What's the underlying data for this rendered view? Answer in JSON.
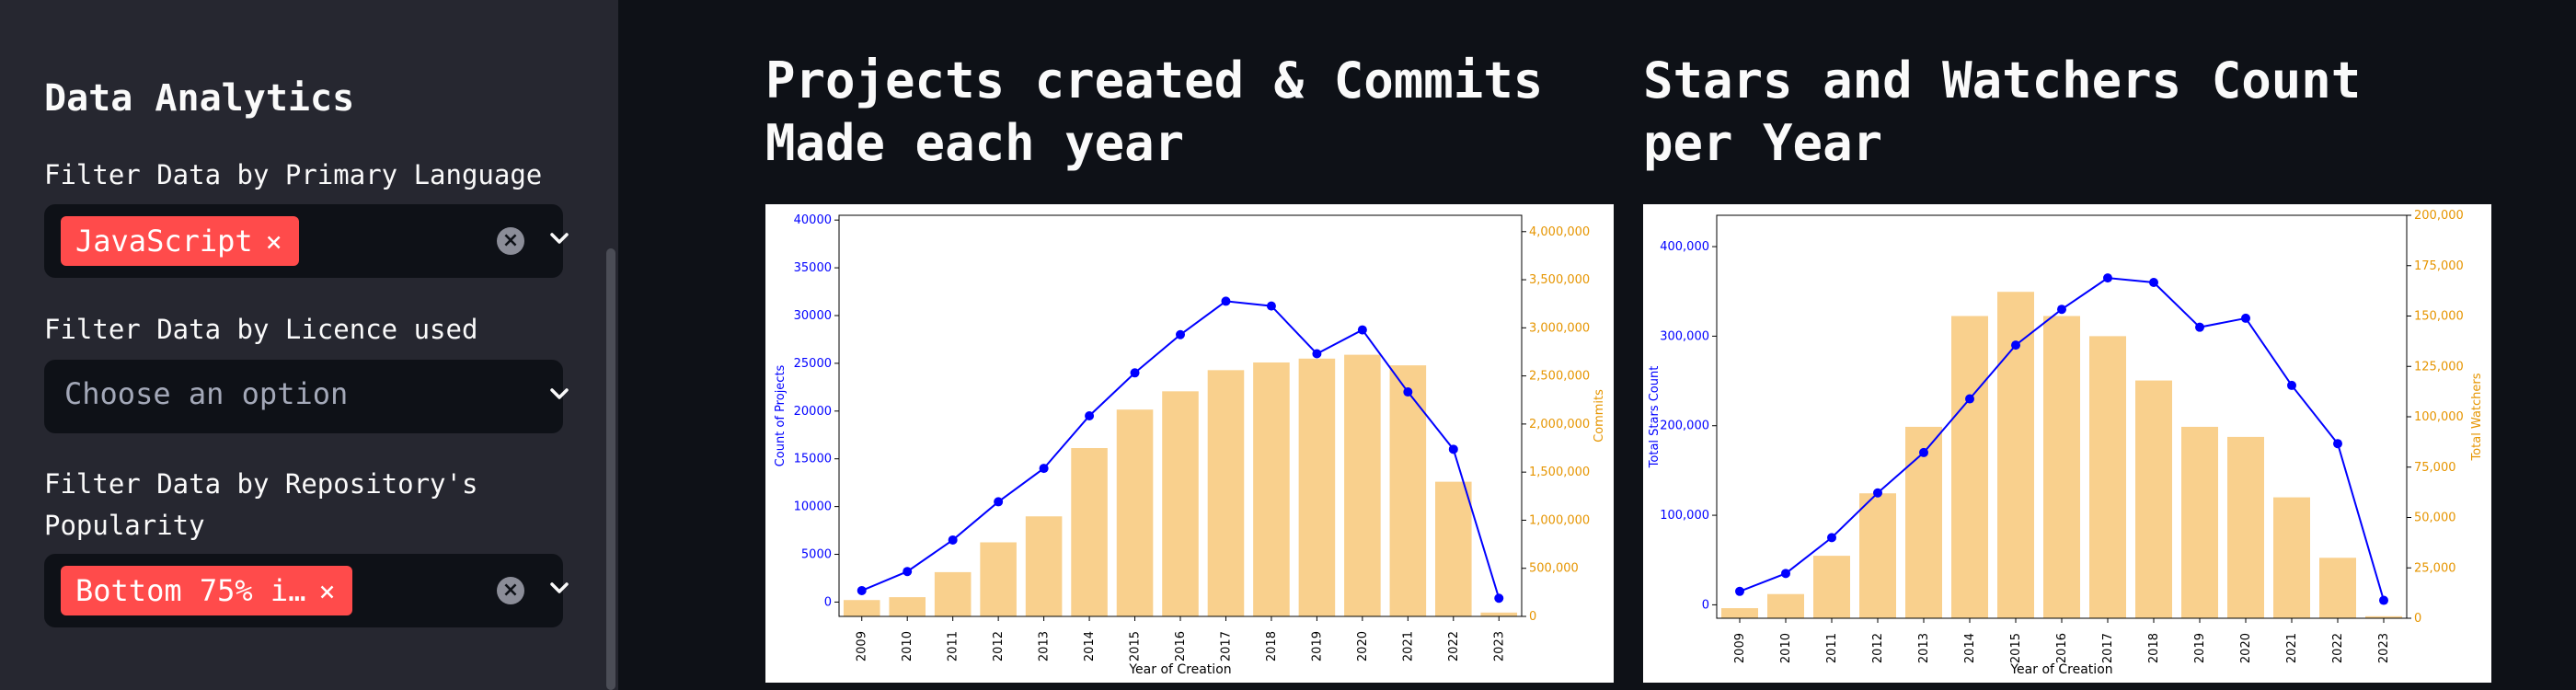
{
  "sidebar": {
    "title": "Data Analytics",
    "filters": [
      {
        "label": "Filter Data by Primary Language",
        "selected": "JavaScript"
      },
      {
        "label": "Filter Data by Licence used",
        "placeholder": "Choose an option"
      },
      {
        "label_line1": "Filter Data by Repository's",
        "label_line2": "Popularity",
        "selected": "Bottom 75% i…"
      }
    ],
    "tag_remove_glyph": "×",
    "clear_glyph": "×"
  },
  "charts": {
    "left_title_line1": "Projects created & Commits",
    "left_title_line2": "Made each year",
    "right_title_line1": "Stars and Watchers Count",
    "right_title_line2": "per Year"
  },
  "chart_data": [
    {
      "type": "bar",
      "title": "Projects created & Commits Made each year",
      "categories": [
        "2009",
        "2010",
        "2011",
        "2012",
        "2013",
        "2014",
        "2015",
        "2016",
        "2017",
        "2018",
        "2019",
        "2020",
        "2021",
        "2022",
        "2023"
      ],
      "xlabel": "Year of Creation",
      "ylabel": "Count of Projects",
      "y2label": "Commits",
      "ylim": [
        -1500,
        40500
      ],
      "y2lim": [
        0,
        4170000
      ],
      "yticks": [
        "0",
        "5000",
        "10000",
        "15000",
        "20000",
        "25000",
        "30000",
        "35000",
        "40000"
      ],
      "y2ticks": [
        "0",
        "500,000",
        "1,000,000",
        "1,500,000",
        "2,000,000",
        "2,500,000",
        "3,000,000",
        "3,500,000",
        "4,000,000"
      ],
      "series": [
        {
          "name": "Count of Projects",
          "kind": "line",
          "axis": "left",
          "color": "#0000ff",
          "values": [
            1200,
            3200,
            6500,
            10500,
            14000,
            19500,
            24000,
            28000,
            31500,
            31000,
            26000,
            28500,
            22000,
            16000,
            400
          ]
        },
        {
          "name": "Commits",
          "kind": "bar",
          "axis": "right",
          "color": "#f5b041",
          "values": [
            170000,
            200000,
            460000,
            770000,
            1040000,
            1750000,
            2150000,
            2340000,
            2560000,
            2640000,
            2680000,
            2720000,
            2610000,
            1400000,
            40000
          ]
        }
      ]
    },
    {
      "type": "bar",
      "title": "Stars and Watchers Count per Year",
      "categories": [
        "2009",
        "2010",
        "2011",
        "2012",
        "2013",
        "2014",
        "2015",
        "2016",
        "2017",
        "2018",
        "2019",
        "2020",
        "2021",
        "2022",
        "2023"
      ],
      "xlabel": "Year of Creation",
      "ylabel": "Total Stars Count",
      "y2label": "Total Watchers",
      "ylim": [
        -15000,
        435000
      ],
      "y2lim": [
        0,
        200000
      ],
      "yticks": [
        "0",
        "100,000",
        "200,000",
        "300,000",
        "400,000"
      ],
      "y2ticks": [
        "0",
        "25,000",
        "50,000",
        "75,000",
        "100,000",
        "125,000",
        "150,000",
        "175,000",
        "200,000"
      ],
      "series": [
        {
          "name": "Total Stars Count",
          "kind": "line",
          "axis": "left",
          "color": "#0000ff",
          "values": [
            15000,
            35000,
            75000,
            125000,
            170000,
            230000,
            290000,
            330000,
            365000,
            360000,
            310000,
            320000,
            245000,
            180000,
            5000
          ]
        },
        {
          "name": "Total Watchers",
          "kind": "bar",
          "axis": "right",
          "color": "#f5b041",
          "values": [
            5000,
            12000,
            31000,
            62000,
            95000,
            150000,
            162000,
            150000,
            140000,
            118000,
            95000,
            90000,
            60000,
            30000,
            1000
          ]
        }
      ]
    }
  ]
}
